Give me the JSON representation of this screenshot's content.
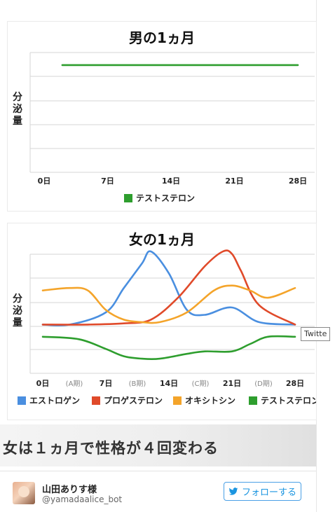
{
  "chart_data": [
    {
      "type": "line",
      "title": "男の1ヵ月",
      "ylabel": "分泌量",
      "xlabel": "",
      "categories": [
        "0日",
        "7日",
        "14日",
        "21日",
        "28日"
      ],
      "x_range": [
        0,
        28
      ],
      "ylim": [
        0,
        100
      ],
      "grid": true,
      "legend_position": "bottom",
      "series": [
        {
          "name": "テストステロン",
          "color": "#2e9e2e",
          "x": [
            2,
            28
          ],
          "y": [
            90,
            90
          ]
        }
      ]
    },
    {
      "type": "line",
      "title": "女の1ヵ月",
      "ylabel": "分泌量",
      "xlabel": "",
      "categories": [
        "0日",
        "(A期)",
        "7日",
        "(B期)",
        "14日",
        "(C期)",
        "21日",
        "(D期)",
        "28日"
      ],
      "x_range": [
        0,
        28
      ],
      "ylim": [
        0,
        100
      ],
      "grid": true,
      "legend_position": "bottom",
      "series": [
        {
          "name": "エストロゲン",
          "color": "#4a8fe0",
          "x": [
            0,
            3,
            7,
            9,
            11,
            12,
            14,
            16,
            18,
            21,
            24,
            28
          ],
          "y": [
            40,
            40,
            50,
            70,
            90,
            100,
            82,
            52,
            48,
            54,
            42,
            40
          ]
        },
        {
          "name": "プロゲステロン",
          "color": "#e04a2a",
          "x": [
            0,
            5,
            9,
            12,
            15,
            18,
            20,
            21,
            22,
            24,
            28
          ],
          "y": [
            40,
            40,
            41,
            44,
            62,
            88,
            100,
            98,
            84,
            56,
            40
          ]
        },
        {
          "name": "オキシトシン",
          "color": "#f4a42a",
          "x": [
            0,
            3,
            5,
            7,
            9,
            11,
            13,
            16,
            19,
            21,
            23,
            25,
            28
          ],
          "y": [
            68,
            70,
            68,
            52,
            44,
            42,
            42,
            50,
            68,
            72,
            68,
            62,
            70
          ]
        },
        {
          "name": "テストステロン",
          "color": "#2e9e2e",
          "x": [
            0,
            4,
            7,
            9,
            11,
            13,
            16,
            18,
            21,
            23,
            25,
            28
          ],
          "y": [
            30,
            28,
            20,
            14,
            12,
            12,
            16,
            18,
            18,
            24,
            30,
            30
          ]
        }
      ]
    }
  ],
  "caption": "女は１ヵ月で性格が４回変わる",
  "tweet": {
    "author_name": "山田ありす様",
    "author_handle": "@yamadaalice_bot",
    "follow_label": "フォローする",
    "tooltip": "Twitte"
  },
  "colors": {
    "accent": "#1b95e0"
  },
  "icons": {
    "follow": "twitter-bird-icon",
    "avatar": "avatar"
  }
}
